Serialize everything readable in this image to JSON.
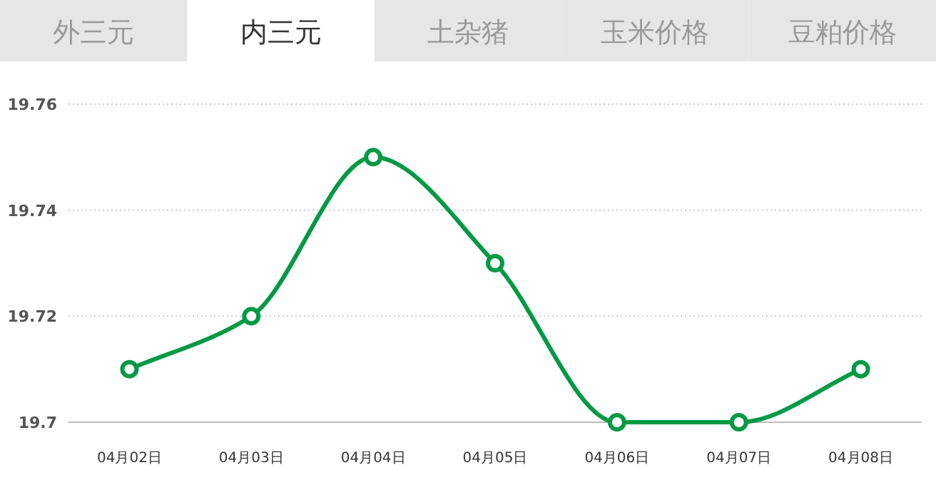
{
  "chart_data": {
    "type": "line",
    "annotations": [
      "外三元",
      "内三元",
      "土杂猪",
      "玉米价格",
      "豆粕价格"
    ],
    "categories": [
      "04月02日",
      "04月03日",
      "04月04日",
      "04月05日",
      "04月06日",
      "04月07日",
      "04月08日"
    ],
    "series": [
      {
        "color": "#009944",
        "values": [
          19.71,
          19.72,
          19.75,
          19.73,
          19.7,
          19.7,
          19.71
        ]
      }
    ],
    "ylim": [
      19.7,
      19.76
    ],
    "yticks": [
      {
        "value": 19.7,
        "label": "19.7"
      },
      19.72,
      19.74,
      19.76
    ],
    "grid": "y",
    "marker": "circle",
    "line_style": "solid"
  }
}
